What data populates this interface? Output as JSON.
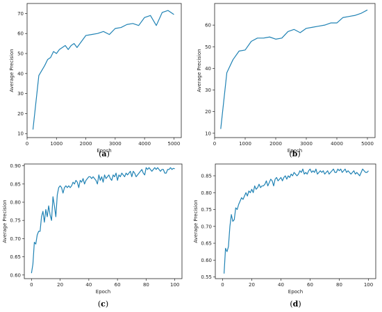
{
  "chart_data": [
    {
      "type": "line",
      "caption": "(a)",
      "xlabel": "Epoch",
      "ylabel": "Average Precision",
      "xlim": [
        0,
        5250
      ],
      "ylim": [
        8,
        75
      ],
      "xticks": [
        0,
        1000,
        2000,
        3000,
        4000,
        5000
      ],
      "yticks": [
        10,
        20,
        30,
        40,
        50,
        60,
        70
      ],
      "grid": false,
      "series": [
        {
          "color": "#1f82b4",
          "x": [
            200,
            400,
            600,
            700,
            800,
            900,
            1000,
            1100,
            1200,
            1300,
            1400,
            1500,
            1600,
            1700,
            1800,
            2000,
            2200,
            2400,
            2600,
            2800,
            3000,
            3200,
            3400,
            3600,
            3800,
            4000,
            4200,
            4400,
            4600,
            4800,
            5000
          ],
          "y": [
            12,
            39,
            44,
            47,
            48,
            51,
            50,
            52,
            53,
            54,
            52,
            54,
            55,
            53,
            55,
            59,
            59.5,
            60,
            61,
            59.5,
            62.5,
            63,
            64.5,
            65,
            64,
            68,
            69,
            64,
            70.5,
            71.5,
            69.5
          ]
        }
      ]
    },
    {
      "type": "line",
      "caption": "(b)",
      "xlabel": "Epoch",
      "ylabel": "Average Precision",
      "xlim": [
        0,
        5250
      ],
      "ylim": [
        8,
        70
      ],
      "xticks": [
        0,
        1000,
        2000,
        3000,
        4000,
        5000
      ],
      "yticks": [
        10,
        20,
        30,
        40,
        50,
        60
      ],
      "grid": false,
      "series": [
        {
          "color": "#1f82b4",
          "x": [
            200,
            400,
            600,
            800,
            1000,
            1200,
            1400,
            1600,
            1800,
            2000,
            2200,
            2400,
            2600,
            2800,
            3000,
            3200,
            3400,
            3600,
            3800,
            4000,
            4200,
            4400,
            4600,
            4800,
            5000
          ],
          "y": [
            12,
            38,
            44,
            48,
            48.5,
            52.5,
            54,
            54,
            54.5,
            53.5,
            54,
            57,
            58,
            56.5,
            58.5,
            59,
            59.5,
            60,
            61,
            61,
            63.5,
            64,
            64.5,
            65.5,
            67
          ]
        }
      ]
    },
    {
      "type": "line",
      "caption": "(c)",
      "xlabel": "Epoch",
      "ylabel": "Average Precision",
      "xlim": [
        -5,
        105
      ],
      "ylim": [
        0.59,
        0.905
      ],
      "xticks": [
        0,
        20,
        40,
        60,
        80,
        100
      ],
      "yticks": [
        0.6,
        0.65,
        0.7,
        0.75,
        0.8,
        0.85,
        0.9
      ],
      "grid": false,
      "series": [
        {
          "color": "#1f82b4",
          "x": [
            0,
            1,
            2,
            3,
            4,
            5,
            6,
            7,
            8,
            9,
            10,
            11,
            12,
            13,
            14,
            15,
            16,
            17,
            18,
            19,
            20,
            21,
            22,
            23,
            24,
            25,
            26,
            27,
            28,
            29,
            30,
            31,
            32,
            33,
            34,
            35,
            36,
            37,
            38,
            39,
            40,
            41,
            42,
            43,
            44,
            45,
            46,
            47,
            48,
            49,
            50,
            51,
            52,
            53,
            54,
            55,
            56,
            57,
            58,
            59,
            60,
            61,
            62,
            63,
            64,
            65,
            66,
            67,
            68,
            69,
            70,
            71,
            72,
            73,
            74,
            75,
            76,
            77,
            78,
            79,
            80,
            81,
            82,
            83,
            84,
            85,
            86,
            87,
            88,
            89,
            90,
            91,
            92,
            93,
            94,
            95,
            96,
            97,
            98,
            99,
            100
          ],
          "y": [
            0.605,
            0.63,
            0.69,
            0.685,
            0.71,
            0.72,
            0.72,
            0.76,
            0.775,
            0.745,
            0.78,
            0.76,
            0.79,
            0.765,
            0.75,
            0.815,
            0.79,
            0.76,
            0.82,
            0.84,
            0.845,
            0.84,
            0.825,
            0.84,
            0.845,
            0.84,
            0.845,
            0.84,
            0.845,
            0.855,
            0.85,
            0.86,
            0.855,
            0.84,
            0.86,
            0.855,
            0.865,
            0.85,
            0.86,
            0.865,
            0.87,
            0.87,
            0.865,
            0.87,
            0.865,
            0.86,
            0.85,
            0.875,
            0.86,
            0.87,
            0.855,
            0.875,
            0.865,
            0.87,
            0.875,
            0.865,
            0.86,
            0.875,
            0.87,
            0.88,
            0.86,
            0.875,
            0.87,
            0.88,
            0.875,
            0.87,
            0.88,
            0.875,
            0.88,
            0.885,
            0.87,
            0.885,
            0.88,
            0.87,
            0.875,
            0.88,
            0.885,
            0.89,
            0.88,
            0.875,
            0.895,
            0.89,
            0.895,
            0.89,
            0.885,
            0.89,
            0.895,
            0.89,
            0.895,
            0.89,
            0.885,
            0.89,
            0.89,
            0.88,
            0.88,
            0.89,
            0.89,
            0.895,
            0.89,
            0.893,
            0.892
          ]
        }
      ]
    },
    {
      "type": "line",
      "caption": "(d)",
      "xlabel": "Epoch",
      "ylabel": "Average Precision",
      "xlim": [
        -5,
        105
      ],
      "ylim": [
        0.545,
        0.885
      ],
      "xticks": [
        0,
        20,
        40,
        60,
        80,
        100
      ],
      "yticks": [
        0.55,
        0.6,
        0.65,
        0.7,
        0.75,
        0.8,
        0.85
      ],
      "grid": false,
      "series": [
        {
          "color": "#1f82b4",
          "x": [
            1,
            2,
            3,
            4,
            5,
            6,
            7,
            8,
            9,
            10,
            11,
            12,
            13,
            14,
            15,
            16,
            17,
            18,
            19,
            20,
            21,
            22,
            23,
            24,
            25,
            26,
            27,
            28,
            29,
            30,
            31,
            32,
            33,
            34,
            35,
            36,
            37,
            38,
            39,
            40,
            41,
            42,
            43,
            44,
            45,
            46,
            47,
            48,
            49,
            50,
            51,
            52,
            53,
            54,
            55,
            56,
            57,
            58,
            59,
            60,
            61,
            62,
            63,
            64,
            65,
            66,
            67,
            68,
            69,
            70,
            71,
            72,
            73,
            74,
            75,
            76,
            77,
            78,
            79,
            80,
            81,
            82,
            83,
            84,
            85,
            86,
            87,
            88,
            89,
            90,
            91,
            92,
            93,
            94,
            95,
            96,
            97,
            98,
            99,
            100
          ],
          "y": [
            0.56,
            0.635,
            0.625,
            0.64,
            0.7,
            0.735,
            0.715,
            0.72,
            0.755,
            0.75,
            0.765,
            0.775,
            0.785,
            0.78,
            0.79,
            0.8,
            0.79,
            0.805,
            0.8,
            0.81,
            0.8,
            0.82,
            0.81,
            0.815,
            0.825,
            0.815,
            0.82,
            0.82,
            0.825,
            0.835,
            0.82,
            0.83,
            0.84,
            0.835,
            0.82,
            0.84,
            0.845,
            0.835,
            0.84,
            0.845,
            0.835,
            0.845,
            0.85,
            0.84,
            0.85,
            0.845,
            0.855,
            0.85,
            0.86,
            0.855,
            0.85,
            0.855,
            0.865,
            0.86,
            0.87,
            0.855,
            0.86,
            0.855,
            0.865,
            0.87,
            0.86,
            0.865,
            0.86,
            0.87,
            0.855,
            0.86,
            0.865,
            0.86,
            0.865,
            0.855,
            0.86,
            0.865,
            0.855,
            0.86,
            0.865,
            0.87,
            0.86,
            0.86,
            0.87,
            0.865,
            0.87,
            0.86,
            0.865,
            0.87,
            0.86,
            0.865,
            0.86,
            0.855,
            0.86,
            0.865,
            0.855,
            0.86,
            0.855,
            0.85,
            0.86,
            0.87,
            0.865,
            0.86,
            0.86,
            0.865
          ]
        }
      ]
    }
  ]
}
